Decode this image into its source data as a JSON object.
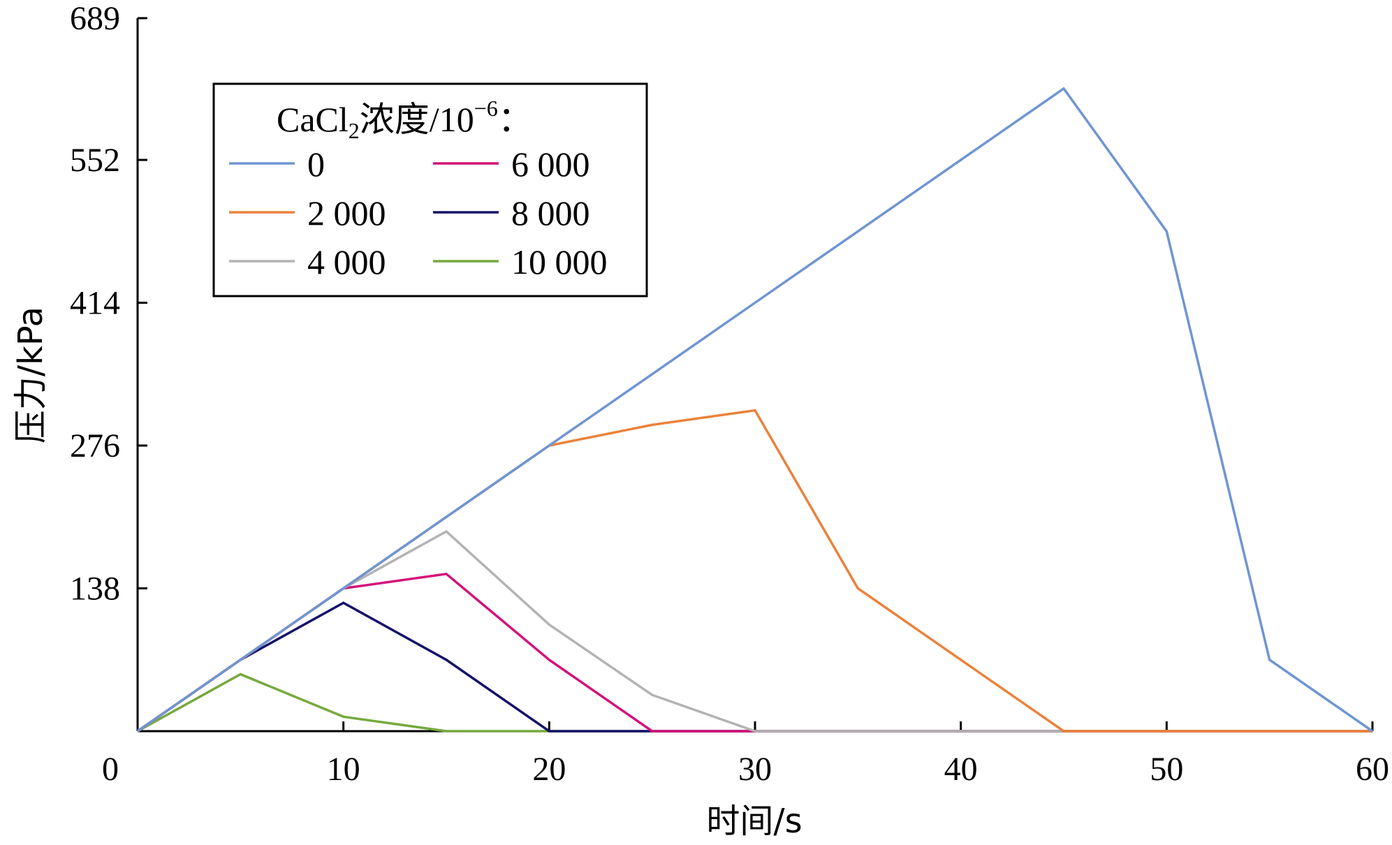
{
  "chart_data": {
    "type": "line",
    "xlabel": "时间/s",
    "ylabel": "压力/kPa",
    "xlim": [
      0,
      60
    ],
    "ylim": [
      0,
      689
    ],
    "xticks": [
      0,
      10,
      20,
      30,
      40,
      50,
      60
    ],
    "yticks": [
      138,
      276,
      414,
      552,
      689
    ],
    "x_tick_labels": [
      "0",
      "10",
      "20",
      "30",
      "40",
      "50",
      "60"
    ],
    "y_tick_labels": [
      "138",
      "276",
      "414",
      "552",
      "689"
    ],
    "grid": false,
    "legend": {
      "position": "top-left",
      "title_main": "CaCl",
      "title_sub": "2",
      "title_mid": "浓度/10",
      "title_sup": "−6",
      "title_end": "："
    },
    "series": [
      {
        "name": "0",
        "color": "#6f95d2",
        "x": [
          0,
          5,
          10,
          15,
          20,
          25,
          30,
          35,
          40,
          45,
          50,
          55,
          60
        ],
        "y": [
          0,
          69,
          138,
          207,
          276,
          345,
          414,
          483,
          552,
          621,
          483,
          69,
          0
        ]
      },
      {
        "name": "2 000",
        "color": "#ea823b",
        "x": [
          0,
          5,
          10,
          15,
          20,
          25,
          30,
          35,
          40,
          45,
          50,
          55,
          60
        ],
        "y": [
          0,
          69,
          138,
          207,
          276,
          296,
          310,
          138,
          69,
          0,
          0,
          0,
          0
        ]
      },
      {
        "name": "4 000",
        "color": "#b3b3b3",
        "x": [
          0,
          5,
          10,
          15,
          20,
          25,
          30,
          35,
          40,
          45,
          50,
          55,
          60
        ],
        "y": [
          0,
          69,
          138,
          193,
          103,
          35,
          0,
          0,
          0,
          0,
          0,
          0,
          0
        ]
      },
      {
        "name": "6 000",
        "color": "#d4127a",
        "x": [
          0,
          5,
          10,
          15,
          20,
          25,
          30,
          35,
          40,
          45,
          50,
          55,
          60
        ],
        "y": [
          0,
          69,
          138,
          152,
          69,
          0,
          0,
          0,
          0,
          0,
          0,
          0,
          0
        ]
      },
      {
        "name": "8 000",
        "color": "#15126a",
        "x": [
          0,
          5,
          10,
          15,
          20,
          25,
          30,
          35,
          40,
          45,
          50,
          55,
          60
        ],
        "y": [
          0,
          69,
          124,
          69,
          0,
          0,
          0,
          0,
          0,
          0,
          0,
          0,
          0
        ]
      },
      {
        "name": "10 000",
        "color": "#76a93e",
        "x": [
          0,
          5,
          10,
          15,
          20,
          25,
          30,
          35,
          40,
          45,
          50,
          55,
          60
        ],
        "y": [
          0,
          55,
          14,
          0,
          0,
          0,
          0,
          0,
          0,
          0,
          0,
          0,
          0
        ]
      }
    ]
  }
}
